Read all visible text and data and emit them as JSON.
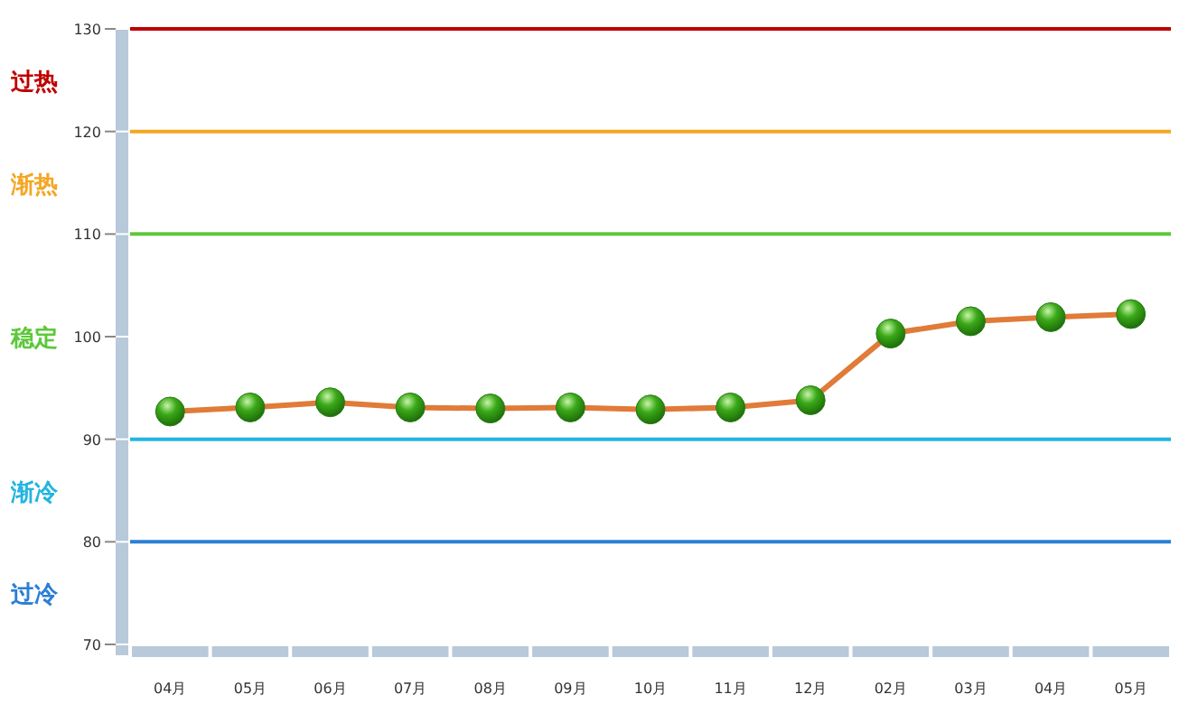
{
  "chart_data": {
    "type": "line",
    "categories": [
      "04月",
      "05月",
      "06月",
      "07月",
      "08月",
      "09月",
      "10月",
      "11月",
      "12月",
      "02月",
      "03月",
      "04月",
      "05月"
    ],
    "series": [
      {
        "color": "#e07b39",
        "values": [
          92.7,
          93.1,
          93.6,
          93.1,
          93.0,
          93.1,
          92.9,
          93.1,
          93.8,
          100.3,
          101.5,
          101.9,
          102.2
        ]
      }
    ],
    "marker": "circle",
    "ylim": [
      70,
      130
    ],
    "yticks": [
      70,
      80,
      90,
      100,
      110,
      120,
      130
    ],
    "grid": false,
    "ref_lines": [
      {
        "axis": "y",
        "value": 130,
        "color": "#c00000"
      },
      {
        "axis": "y",
        "value": 120,
        "color": "#f5a623"
      },
      {
        "axis": "y",
        "value": 110,
        "color": "#5cc83a"
      },
      {
        "axis": "y",
        "value": 90,
        "color": "#22b5e0"
      },
      {
        "axis": "y",
        "value": 80,
        "color": "#2a7fd4"
      }
    ],
    "annotations": [
      "过热",
      "渐热",
      "稳定",
      "渐冷",
      "过冷"
    ]
  }
}
